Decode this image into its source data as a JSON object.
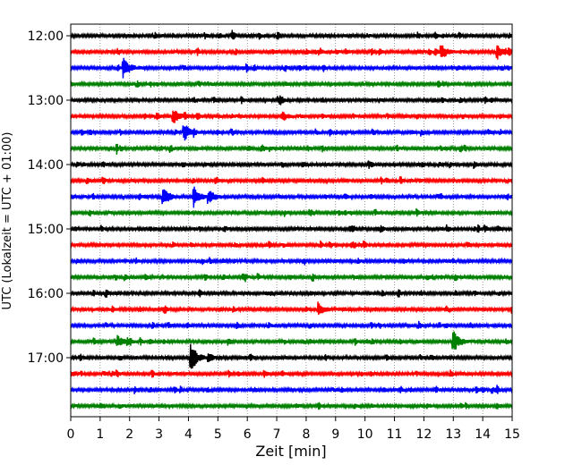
{
  "chart_data": {
    "type": "line",
    "xlabel": "Zeit  [min]",
    "ylabel": "UTC (Lokalzeit = UTC + 01:00)",
    "xlim": [
      0,
      15
    ],
    "xticks": [
      "0",
      "1",
      "2",
      "3",
      "4",
      "5",
      "6",
      "7",
      "8",
      "9",
      "10",
      "11",
      "12",
      "13",
      "14",
      "15"
    ],
    "grid": "vertical-dotted",
    "row_interval_minutes": 15,
    "row_labels": [
      "12:00",
      "13:00",
      "14:00",
      "15:00",
      "16:00",
      "17:00"
    ],
    "row_label_indices": [
      0,
      4,
      8,
      12,
      16,
      20
    ],
    "row_colors": [
      "#000000",
      "#ff0000",
      "#0000ff",
      "#008000"
    ],
    "trace_rows": [
      "12:00",
      "12:15",
      "12:30",
      "12:45",
      "13:00",
      "13:15",
      "13:30",
      "13:45",
      "14:00",
      "14:15",
      "14:30",
      "14:45",
      "15:00",
      "15:15",
      "15:30",
      "15:45",
      "16:00",
      "16:15",
      "16:30",
      "16:45",
      "17:00",
      "17:15",
      "17:30",
      "17:45"
    ],
    "events": [
      {
        "row": 1,
        "t_min": 12.6,
        "amplitude": 0.45
      },
      {
        "row": 1,
        "t_min": 14.5,
        "amplitude": 0.45
      },
      {
        "row": 2,
        "t_min": 1.8,
        "amplitude": 0.6
      },
      {
        "row": 5,
        "t_min": 3.5,
        "amplitude": 0.45
      },
      {
        "row": 5,
        "t_min": 7.2,
        "amplitude": 0.25
      },
      {
        "row": 6,
        "t_min": 3.85,
        "amplitude": 0.55
      },
      {
        "row": 7,
        "t_min": 6.5,
        "amplitude": 0.18
      },
      {
        "row": 10,
        "t_min": 3.15,
        "amplitude": 0.5
      },
      {
        "row": 10,
        "t_min": 4.2,
        "amplitude": 0.45
      },
      {
        "row": 10,
        "t_min": 4.7,
        "amplitude": 0.35
      },
      {
        "row": 17,
        "t_min": 8.45,
        "amplitude": 0.35
      },
      {
        "row": 19,
        "t_min": 1.6,
        "amplitude": 0.3
      },
      {
        "row": 19,
        "t_min": 13.0,
        "amplitude": 0.7
      },
      {
        "row": 20,
        "t_min": 4.1,
        "amplitude": 0.8
      }
    ]
  }
}
